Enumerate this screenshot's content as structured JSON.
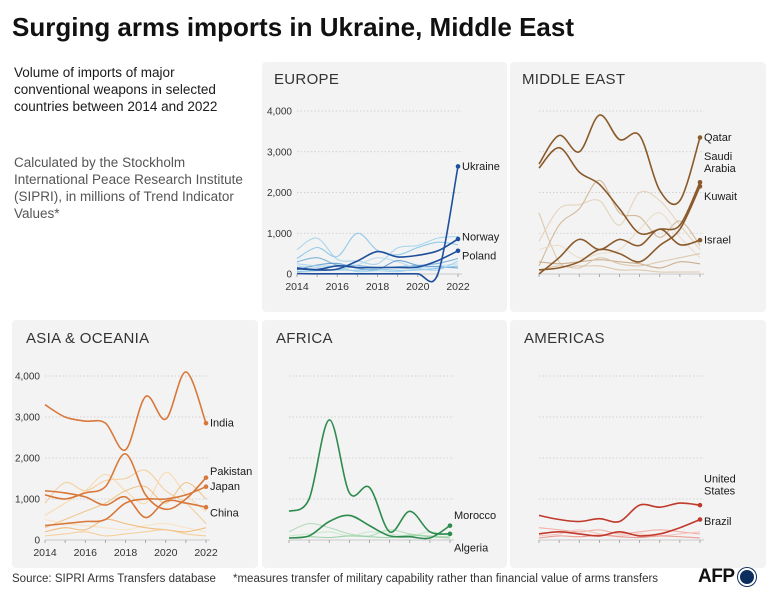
{
  "header": {
    "title": "Surging arms imports in Ukraine, Middle East",
    "subtitle": "Volume of imports of major conventional weapons in selected countries between 2014 and 2022",
    "methodology": "Calculated by the Stockholm International Peace Research Institute (SIPRI), in millions of Trend Indicator Values*"
  },
  "footer": {
    "source": "Source: SIPRI Arms Transfers database",
    "note": "*measures transfer of military capability rather than financial value of arms transfers",
    "logo": "AFP"
  },
  "chart_data": [
    {
      "type": "line",
      "title": "EUROPE",
      "x": [
        2014,
        2015,
        2016,
        2017,
        2018,
        2019,
        2020,
        2021,
        2022
      ],
      "ylim": [
        0,
        4000
      ],
      "y_ticks": [
        "4,000",
        "3,000",
        "2,000",
        "1,000",
        "0"
      ],
      "x_ticks": [
        "2014",
        "2016",
        "2018",
        "2020",
        "2022"
      ],
      "palette": "blue",
      "series": [
        {
          "name": "Ukraine",
          "label": "Ukraine",
          "values": [
            10,
            5,
            5,
            5,
            5,
            5,
            5,
            5,
            2640
          ]
        },
        {
          "name": "Norway",
          "label": "Norway",
          "values": [
            130,
            100,
            120,
            320,
            550,
            420,
            460,
            570,
            860
          ]
        },
        {
          "name": "Poland",
          "label": "Poland",
          "values": [
            150,
            110,
            200,
            160,
            160,
            160,
            170,
            330,
            570
          ]
        },
        {
          "name": "",
          "label": "",
          "values": [
            380,
            650,
            430,
            1000,
            580,
            470,
            650,
            780,
            720
          ]
        },
        {
          "name": "",
          "label": "",
          "values": [
            600,
            880,
            360,
            320,
            250,
            640,
            700,
            880,
            920
          ]
        },
        {
          "name": "",
          "label": "",
          "values": [
            300,
            400,
            220,
            210,
            160,
            180,
            210,
            260,
            380
          ]
        },
        {
          "name": "",
          "label": "",
          "values": [
            200,
            160,
            100,
            220,
            400,
            300,
            150,
            200,
            250
          ]
        },
        {
          "name": "",
          "label": "",
          "values": [
            100,
            220,
            260,
            140,
            110,
            330,
            210,
            180,
            150
          ]
        },
        {
          "name": "",
          "label": "",
          "values": [
            60,
            80,
            100,
            90,
            120,
            90,
            100,
            140,
            200
          ]
        },
        {
          "name": "",
          "label": "",
          "values": [
            250,
            200,
            180,
            60,
            80,
            60,
            120,
            100,
            320
          ]
        }
      ]
    },
    {
      "type": "line",
      "title": "MIDDLE EAST",
      "x": [
        2014,
        2015,
        2016,
        2017,
        2018,
        2019,
        2020,
        2021,
        2022
      ],
      "ylim": [
        0,
        4000
      ],
      "y_ticks": [],
      "x_ticks": [],
      "palette": "brown",
      "series": [
        {
          "name": "Qatar",
          "label": "Qatar",
          "values": [
            2700,
            3400,
            3000,
            3900,
            3300,
            3400,
            2050,
            1800,
            3350
          ]
        },
        {
          "name": "Saudi Arabia",
          "label": "Saudi\nArabia",
          "values": [
            2600,
            3100,
            2500,
            2200,
            1600,
            1000,
            1100,
            1200,
            2250
          ]
        },
        {
          "name": "Kuwait",
          "label": "Kuwait",
          "values": [
            100,
            150,
            300,
            600,
            500,
            300,
            700,
            1100,
            2150
          ]
        },
        {
          "name": "Israel",
          "label": "Israel",
          "values": [
            0,
            400,
            850,
            600,
            850,
            700,
            1100,
            720,
            830
          ]
        },
        {
          "name": "",
          "label": "",
          "values": [
            1500,
            300,
            200,
            200,
            100,
            100,
            50,
            50,
            50
          ]
        },
        {
          "name": "",
          "label": "",
          "values": [
            800,
            1600,
            1700,
            1800,
            1200,
            2000,
            1800,
            1200,
            600
          ]
        },
        {
          "name": "",
          "label": "",
          "values": [
            200,
            1200,
            1600,
            2300,
            1500,
            1400,
            900,
            1300,
            700
          ]
        },
        {
          "name": "",
          "label": "",
          "values": [
            600,
            700,
            400,
            500,
            600,
            1100,
            1500,
            900,
            400
          ]
        },
        {
          "name": "",
          "label": "",
          "values": [
            300,
            250,
            300,
            350,
            300,
            250,
            150,
            300,
            250
          ]
        },
        {
          "name": "",
          "label": "",
          "values": [
            100,
            200,
            150,
            400,
            250,
            200,
            300,
            400,
            500
          ]
        }
      ]
    },
    {
      "type": "line",
      "title": "ASIA & OCEANIA",
      "x": [
        2014,
        2015,
        2016,
        2017,
        2018,
        2019,
        2020,
        2021,
        2022
      ],
      "ylim": [
        0,
        4000
      ],
      "y_ticks": [
        "4,000",
        "3,000",
        "2,000",
        "1,000",
        "0"
      ],
      "x_ticks": [
        "2014",
        "2016",
        "2018",
        "2020",
        "2022"
      ],
      "palette": "orange",
      "series": [
        {
          "name": "India",
          "label": "India",
          "values": [
            3300,
            3000,
            2900,
            2850,
            2200,
            3500,
            2950,
            4100,
            2850
          ]
        },
        {
          "name": "Pakistan",
          "label": "Pakistan",
          "values": [
            1100,
            1000,
            1150,
            1300,
            2100,
            1100,
            750,
            1000,
            1520
          ]
        },
        {
          "name": "Japan",
          "label": "Japan",
          "values": [
            350,
            400,
            450,
            500,
            900,
            1000,
            1000,
            1100,
            1300
          ]
        },
        {
          "name": "China",
          "label": "China",
          "values": [
            1200,
            1150,
            1050,
            850,
            1050,
            550,
            950,
            900,
            800
          ]
        },
        {
          "name": "",
          "label": "",
          "values": [
            900,
            1400,
            1200,
            1450,
            1500,
            1700,
            1200,
            900,
            400
          ]
        },
        {
          "name": "",
          "label": "",
          "values": [
            600,
            900,
            1200,
            1600,
            1200,
            900,
            1650,
            1100,
            700
          ]
        },
        {
          "name": "",
          "label": "",
          "values": [
            300,
            500,
            700,
            900,
            1200,
            1300,
            900,
            1400,
            1000
          ]
        },
        {
          "name": "",
          "label": "",
          "values": [
            500,
            400,
            350,
            300,
            250,
            350,
            400,
            300,
            200
          ]
        },
        {
          "name": "",
          "label": "",
          "values": [
            200,
            300,
            250,
            500,
            400,
            300,
            250,
            200,
            300
          ]
        },
        {
          "name": "",
          "label": "",
          "values": [
            100,
            150,
            200,
            100,
            150,
            200,
            250,
            150,
            100
          ]
        }
      ]
    },
    {
      "type": "line",
      "title": "AFRICA",
      "x": [
        2014,
        2015,
        2016,
        2017,
        2018,
        2019,
        2020,
        2021,
        2022
      ],
      "ylim": [
        0,
        4000
      ],
      "y_ticks": [],
      "x_ticks": [],
      "palette": "green",
      "series": [
        {
          "name": "Algeria",
          "label": "Algeria",
          "values": [
            700,
            1000,
            2930,
            1150,
            1280,
            200,
            700,
            200,
            150
          ]
        },
        {
          "name": "Morocco",
          "label": "Morocco",
          "values": [
            50,
            100,
            450,
            600,
            350,
            100,
            80,
            50,
            350
          ]
        },
        {
          "name": "",
          "label": "",
          "values": [
            200,
            400,
            300,
            150,
            100,
            250,
            150,
            100,
            80
          ]
        },
        {
          "name": "",
          "label": "",
          "values": [
            100,
            150,
            200,
            100,
            200,
            150,
            100,
            200,
            100
          ]
        },
        {
          "name": "",
          "label": "",
          "values": [
            50,
            80,
            60,
            100,
            80,
            60,
            120,
            80,
            50
          ]
        }
      ]
    },
    {
      "type": "line",
      "title": "AMERICAS",
      "x": [
        2014,
        2015,
        2016,
        2017,
        2018,
        2019,
        2020,
        2021,
        2022
      ],
      "ylim": [
        0,
        4000
      ],
      "y_ticks": [],
      "x_ticks": [],
      "palette": "red",
      "series": [
        {
          "name": "United States",
          "label": "United\nStates",
          "values": [
            600,
            500,
            450,
            520,
            450,
            850,
            800,
            900,
            850
          ]
        },
        {
          "name": "Brazil",
          "label": "Brazil",
          "values": [
            150,
            200,
            150,
            100,
            200,
            100,
            150,
            300,
            500
          ]
        },
        {
          "name": "",
          "label": "",
          "values": [
            300,
            250,
            200,
            250,
            150,
            200,
            250,
            200,
            150
          ]
        },
        {
          "name": "",
          "label": "",
          "values": [
            100,
            150,
            250,
            150,
            100,
            150,
            100,
            150,
            200
          ]
        },
        {
          "name": "",
          "label": "",
          "values": [
            50,
            100,
            80,
            120,
            80,
            60,
            100,
            80,
            50
          ]
        }
      ]
    }
  ],
  "colors": {
    "panel_bg": "#f3f3f3",
    "grid": "#c8c8c8",
    "axis_text": "#333333",
    "blue": {
      "highlight": "#1e4f9c",
      "muted": [
        "#7fc2e6",
        "#9ed0ec",
        "#6aa9d6",
        "#b5daef",
        "#5a98cc"
      ]
    },
    "brown": {
      "highlight": "#8b5a2b",
      "muted": [
        "#d8c2a4",
        "#e2cfb6",
        "#cdb08c",
        "#ead9c4",
        "#c4a27e"
      ]
    },
    "orange": {
      "highlight": "#d9783a",
      "muted": [
        "#f3c98f",
        "#f7d7a8",
        "#eec07e",
        "#f9e1bd",
        "#f0b46b"
      ]
    },
    "green": {
      "highlight": "#2e8b4e",
      "muted": [
        "#a9d8b3",
        "#c4e6ca",
        "#8fcc9c"
      ]
    },
    "red": {
      "highlight": "#c0392b",
      "muted": [
        "#f0a29a",
        "#f5bfb8",
        "#eb8a80"
      ]
    }
  }
}
